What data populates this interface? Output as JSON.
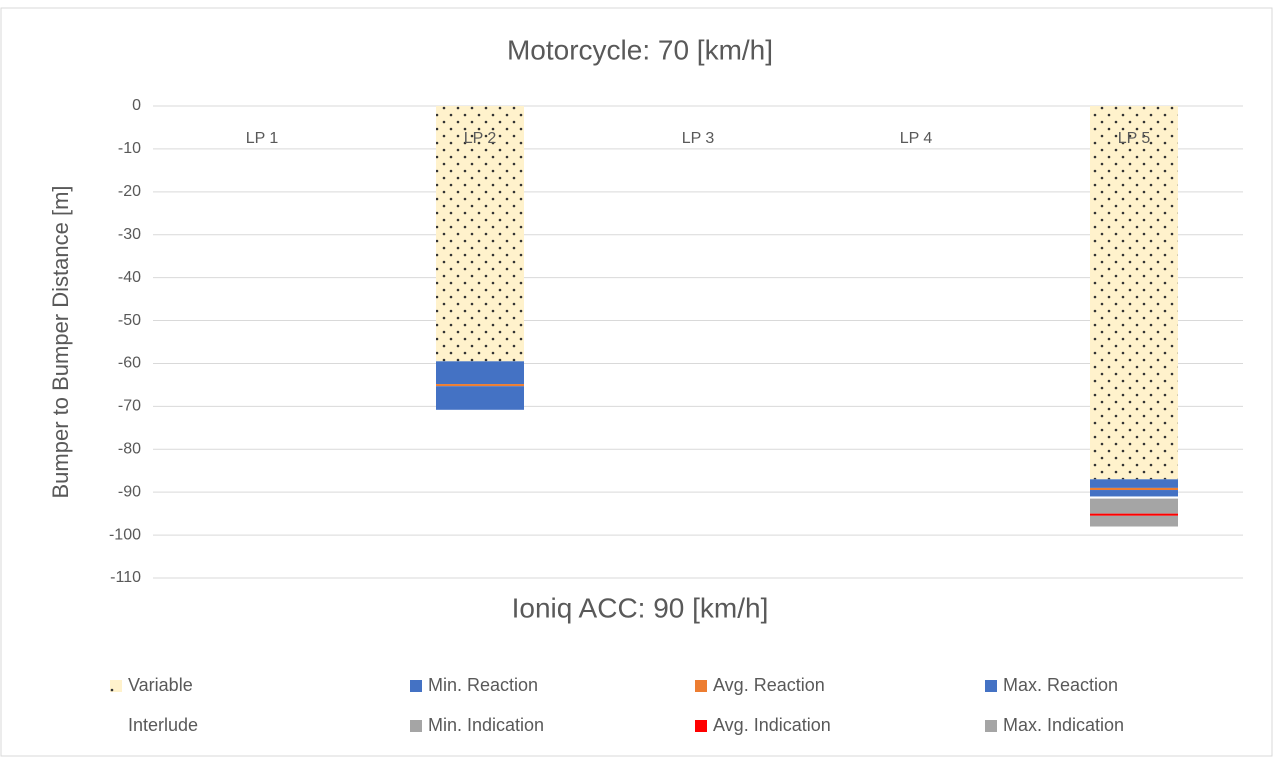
{
  "chart_data": {
    "type": "bar",
    "stacked": true,
    "title": "Motorcycle: 70 [km/h]",
    "x_label": "Ioniq ACC: 90 [km/h]",
    "y_label": "Bumper to Bumper Distance [m]",
    "categories": [
      "LP 1",
      "LP 2",
      "LP 3",
      "LP 4",
      "LP 5"
    ],
    "series": [
      {
        "name": "Variable",
        "color": "#fff2cc",
        "pattern": "dots",
        "values": [
          null,
          -59.5,
          null,
          null,
          -87
        ]
      },
      {
        "name": "Min. Reaction",
        "color": "#4472c4",
        "values": [
          null,
          -5.3,
          null,
          null,
          -2
        ]
      },
      {
        "name": "Avg. Reaction",
        "color": "#ed7d31",
        "values": [
          null,
          -0.5,
          null,
          null,
          -0.5
        ]
      },
      {
        "name": "Max. Reaction",
        "color": "#4472c4",
        "values": [
          null,
          -5.5,
          null,
          null,
          -1.5
        ]
      },
      {
        "name": "Interlude",
        "color": "#ffffff",
        "values": [
          null,
          null,
          null,
          null,
          -0.5
        ]
      },
      {
        "name": "Min. Indication",
        "color": "#a5a5a5",
        "values": [
          null,
          null,
          null,
          null,
          -3.5
        ]
      },
      {
        "name": "Avg. Indication",
        "color": "#ff0000",
        "values": [
          null,
          null,
          null,
          null,
          -0.5
        ]
      },
      {
        "name": "Max. Indication",
        "color": "#a5a5a5",
        "values": [
          null,
          null,
          null,
          null,
          -2.5
        ]
      }
    ],
    "ylim": [
      -110,
      0
    ],
    "yticks": [
      0,
      -10,
      -20,
      -30,
      -40,
      -50,
      -60,
      -70,
      -80,
      -90,
      -100,
      -110
    ],
    "grid": true,
    "legend": "bottom"
  }
}
